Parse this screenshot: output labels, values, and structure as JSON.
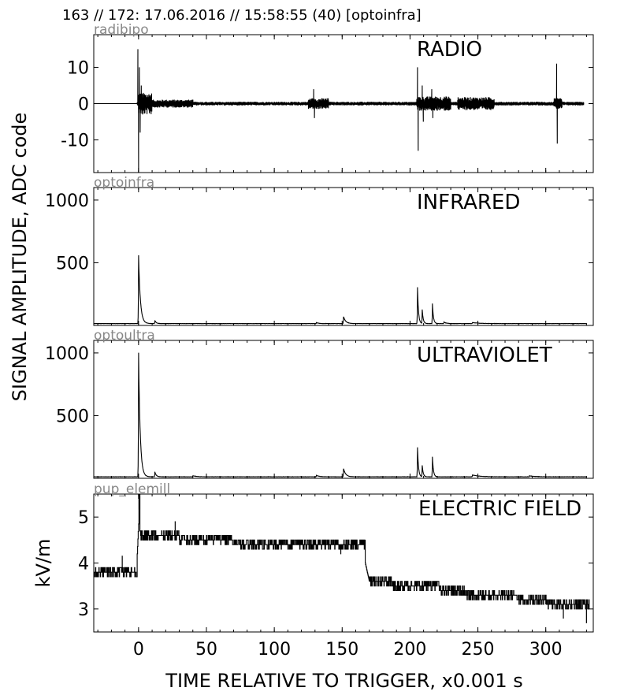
{
  "header": "163 // 172:   17.06.2016 // 15:58:55 (40)  [optoinfra]",
  "ylabel_shared": "SIGNAL AMPLITUDE,  ADC code",
  "xlabel": "TIME RELATIVE TO TRIGGER,   x0.001 s",
  "colors": {
    "trace": "#000000",
    "channel_label": "#888888",
    "frame": "#000000"
  },
  "chart_data": [
    {
      "type": "line",
      "channel": "radibipo",
      "title": "RADIO",
      "ylabel": "",
      "xlim": [
        -33,
        335
      ],
      "ylim": [
        -19,
        19
      ],
      "xticks": [
        0,
        50,
        100,
        150,
        200,
        250,
        300
      ],
      "yticks": [
        -10,
        0,
        10
      ],
      "ytick_labels": [
        "-10",
        "0",
        "10"
      ],
      "baseline": 0,
      "signal_start": -1,
      "signal_end": 328,
      "noise_amplitude": 0.5,
      "noisy_regions": [
        {
          "x0": 0,
          "x1": 10,
          "amp": 3
        },
        {
          "x0": 10,
          "x1": 40,
          "amp": 1.1
        },
        {
          "x0": 125,
          "x1": 140,
          "amp": 1.5
        },
        {
          "x0": 205,
          "x1": 230,
          "amp": 2
        },
        {
          "x0": 235,
          "x1": 262,
          "amp": 1.8
        },
        {
          "x0": 306,
          "x1": 312,
          "amp": 1.5
        }
      ],
      "spikes": [
        {
          "x": -0.5,
          "y": 15
        },
        {
          "x": 0.0,
          "y": -19
        },
        {
          "x": 0.6,
          "y": 10
        },
        {
          "x": 1.2,
          "y": -8
        },
        {
          "x": 2.0,
          "y": 5
        },
        {
          "x": 3.0,
          "y": -3
        },
        {
          "x": 129,
          "y": 4
        },
        {
          "x": 129.6,
          "y": -4
        },
        {
          "x": 205.5,
          "y": 10
        },
        {
          "x": 206,
          "y": -13
        },
        {
          "x": 209,
          "y": 5
        },
        {
          "x": 209.8,
          "y": -5
        },
        {
          "x": 216,
          "y": 4
        },
        {
          "x": 216.8,
          "y": -4
        },
        {
          "x": 308,
          "y": 11
        },
        {
          "x": 308.5,
          "y": -11
        }
      ]
    },
    {
      "type": "line",
      "channel": "optoinfra",
      "title": "INFRARED",
      "ylabel": "",
      "xlim": [
        -33,
        335
      ],
      "ylim": [
        0,
        1100
      ],
      "xticks": [
        0,
        50,
        100,
        150,
        200,
        250,
        300
      ],
      "yticks": [
        500,
        1000
      ],
      "ytick_labels": [
        "500",
        "1000"
      ],
      "baseline": 15,
      "signal_start": -33,
      "signal_end": 330,
      "noise_amplitude": 2,
      "peaks": [
        {
          "x": 0,
          "height": 545,
          "decay": 1.3
        },
        {
          "x": 12,
          "height": 25,
          "decay": 1.0
        },
        {
          "x": 131,
          "height": 8,
          "decay": 1.5
        },
        {
          "x": 151,
          "height": 55,
          "decay": 1.6
        },
        {
          "x": 205.5,
          "height": 290,
          "decay": 0.7
        },
        {
          "x": 209,
          "height": 110,
          "decay": 0.7
        },
        {
          "x": 216.5,
          "height": 160,
          "decay": 0.7
        },
        {
          "x": 225,
          "height": 12,
          "decay": 1.5
        },
        {
          "x": 246,
          "height": 8,
          "decay": 5
        }
      ]
    },
    {
      "type": "line",
      "channel": "optoultra",
      "title": "ULTRAVIOLET",
      "ylabel": "",
      "xlim": [
        -33,
        335
      ],
      "ylim": [
        0,
        1100
      ],
      "xticks": [
        0,
        50,
        100,
        150,
        200,
        250,
        300
      ],
      "yticks": [
        500,
        1000
      ],
      "ytick_labels": [
        "500",
        "1000"
      ],
      "baseline": 12,
      "signal_start": -33,
      "signal_end": 330,
      "noise_amplitude": 2,
      "peaks": [
        {
          "x": 0,
          "height": 990,
          "decay": 1.2
        },
        {
          "x": 12,
          "height": 40,
          "decay": 1.0
        },
        {
          "x": 40,
          "height": 8,
          "decay": 3
        },
        {
          "x": 131,
          "height": 12,
          "decay": 2
        },
        {
          "x": 151,
          "height": 65,
          "decay": 1.6
        },
        {
          "x": 205.5,
          "height": 235,
          "decay": 0.7
        },
        {
          "x": 209,
          "height": 90,
          "decay": 0.7
        },
        {
          "x": 216.5,
          "height": 160,
          "decay": 0.7
        },
        {
          "x": 246,
          "height": 15,
          "decay": 5
        },
        {
          "x": 288,
          "height": 8,
          "decay": 4
        }
      ]
    },
    {
      "type": "line",
      "channel": "pup_elemill",
      "title": "ELECTRIC FIELD",
      "ylabel": "kV/m",
      "xlim": [
        -33,
        335
      ],
      "ylim": [
        2.5,
        5.5
      ],
      "xticks": [
        0,
        50,
        100,
        150,
        200,
        250,
        300
      ],
      "yticks": [
        3,
        4,
        5
      ],
      "ytick_labels": [
        "3",
        "4",
        "5"
      ],
      "quantum": 0.1,
      "signal_start": -33,
      "signal_end": 332,
      "segments": [
        {
          "x0": -33,
          "x1": -1,
          "y0": 3.8,
          "y1": 3.8,
          "jitter": 0.05
        },
        {
          "x0": -1,
          "x1": 1,
          "y0": 4.2,
          "y1": 5.5,
          "jitter": 0
        },
        {
          "x0": 1,
          "x1": 30,
          "y0": 4.65,
          "y1": 4.6,
          "jitter": 0.12
        },
        {
          "x0": 30,
          "x1": 90,
          "y0": 4.55,
          "y1": 4.4,
          "jitter": 0.08
        },
        {
          "x0": 90,
          "x1": 167,
          "y0": 4.4,
          "y1": 4.4,
          "jitter": 0.07
        },
        {
          "x0": 167,
          "x1": 170,
          "y0": 4.0,
          "y1": 3.6,
          "jitter": 0
        },
        {
          "x0": 170,
          "x1": 240,
          "y0": 3.6,
          "y1": 3.4,
          "jitter": 0.1
        },
        {
          "x0": 240,
          "x1": 300,
          "y0": 3.35,
          "y1": 3.2,
          "jitter": 0.1
        },
        {
          "x0": 300,
          "x1": 332,
          "y0": 3.15,
          "y1": 3.05,
          "jitter": 0.1
        }
      ],
      "spikes": [
        {
          "x": -12,
          "y": 4.15
        },
        {
          "x": 0.3,
          "y": 5.5
        },
        {
          "x": 27,
          "y": 4.9
        },
        {
          "x": 149,
          "y": 4.2
        },
        {
          "x": 313,
          "y": 2.8
        },
        {
          "x": 330,
          "y": 2.7
        }
      ]
    }
  ]
}
